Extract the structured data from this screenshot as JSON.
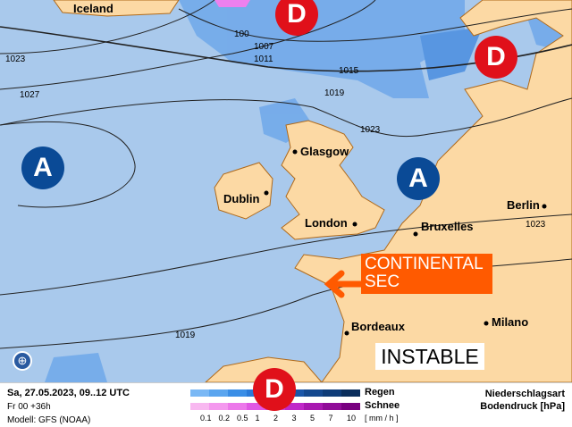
{
  "map": {
    "colors": {
      "sea": "#a9c9ec",
      "land": "#fcd9a4",
      "high": "#0a4a96",
      "low": "#e0101a",
      "callout": "#ff5a00"
    },
    "cities": [
      "Iceland",
      "Glasgow",
      "Dublin",
      "London",
      "Bruxelles",
      "Berlin",
      "Bordeaux",
      "Milano"
    ],
    "isobars": [
      "1023",
      "1027",
      "100",
      "1007",
      "1011",
      "1015",
      "1019",
      "1023",
      "1023",
      "1019"
    ],
    "pressure_centers": {
      "high": "A",
      "low": "D"
    },
    "annotations": {
      "callout_line1": "CONTINENTAL",
      "callout_line2": "SEC",
      "instable": "INSTABLE"
    }
  },
  "footer": {
    "date": "Sa, 27.05.2023, 09..12 UTC",
    "forecast": "Fr 00 +36h",
    "model": "Modell: GFS (NOAA)",
    "rain_label": "Regen",
    "snow_label": "Schnee",
    "unit": "[ mm / h ]",
    "ticks": [
      "0.1",
      "0.2",
      "0.5",
      "1",
      "2",
      "3",
      "5",
      "7",
      "10"
    ],
    "title1": "Niederschlagsart",
    "title2": "Bodendruck [hPa]",
    "rain_colors": [
      "#7ab8f5",
      "#5aa5ef",
      "#3a8ee6",
      "#2a7ad8",
      "#1e66c0",
      "#1a56a8",
      "#14488e",
      "#0e3c78",
      "#0a2e5c"
    ],
    "snow_colors": [
      "#f8b8f0",
      "#f498ee",
      "#ec78ea",
      "#e058e4",
      "#d040d8",
      "#c028c8",
      "#a818b0",
      "#900c98",
      "#780080"
    ]
  }
}
